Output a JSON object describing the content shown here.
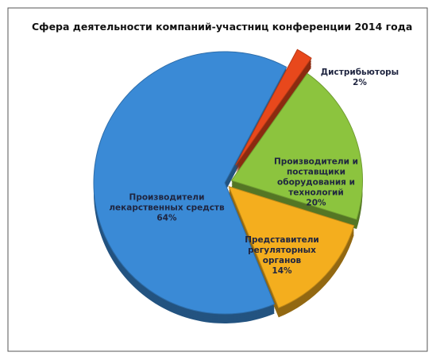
{
  "chart_data": {
    "type": "pie",
    "title": "Сфера деятельности компаний-участниц конференции 2014 года",
    "categories": [
      "Производители лекарственных средств",
      "Дистрибьюторы",
      "Производители и поставщики оборудования и технологий",
      "Представители регуляторных органов"
    ],
    "values": [
      64,
      2,
      20,
      14
    ],
    "value_labels": [
      "64%",
      "2%",
      "20%",
      "14%"
    ],
    "colors": [
      "#3a8ad6",
      "#e8481c",
      "#8cc43e",
      "#f4ae1e"
    ]
  }
}
